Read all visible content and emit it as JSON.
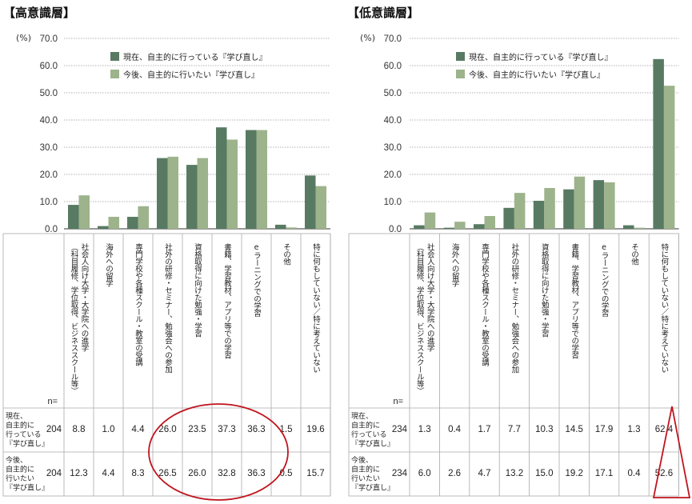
{
  "colors": {
    "series_current": "#587a62",
    "series_future": "#9db38c",
    "annotation": "#c0141e",
    "grid": "#999999"
  },
  "legend": {
    "current": "現在、自主的に行っている『学び直し』",
    "future": "今後、自主的に行いたい『学び直し』"
  },
  "table": {
    "n_label": "n=",
    "row_current": [
      "現在、",
      "自主的に",
      "行っている",
      "『学び直し』"
    ],
    "row_future": [
      "今後、",
      "自主的に",
      "行いたい",
      "『学び直し』"
    ]
  },
  "chart_data": [
    {
      "type": "bar",
      "title": "【高意識層】",
      "ylabel": "(%)",
      "ylim": [
        0,
        70
      ],
      "yticks": [
        "0.0",
        "10.0",
        "20.0",
        "30.0",
        "40.0",
        "50.0",
        "60.0",
        "70.0"
      ],
      "legend_position": "top-left",
      "categories": [
        [
          "社会人向け大学・大学院への進学",
          "（科目履修、学位取得、ビジネススクール等）"
        ],
        [
          "海外への留学"
        ],
        [
          "専門学校や各種スクール・教室の受講"
        ],
        [
          "社外の研修・セミナー、勉強会への参加"
        ],
        [
          "資格取得に向けた勉強・学習"
        ],
        [
          "書籍、学習教材、アプリ等での学習"
        ],
        [
          "eラーニングでの学習"
        ],
        [
          "その他"
        ],
        [
          "特に何もしていない／特に考えていない"
        ]
      ],
      "n": [
        204,
        204
      ],
      "series": [
        {
          "name": "現在、自主的に行っている『学び直し』",
          "values": [
            8.8,
            1.0,
            4.4,
            26.0,
            23.5,
            37.3,
            36.3,
            1.5,
            19.6
          ],
          "labels": [
            "8.8",
            "1.0",
            "4.4",
            "26.0",
            "23.5",
            "37.3",
            "36.3",
            "1.5",
            "19.6"
          ]
        },
        {
          "name": "今後、自主的に行いたい『学び直し』",
          "values": [
            12.3,
            4.4,
            8.3,
            26.5,
            26.0,
            32.8,
            36.3,
            0.5,
            15.7
          ],
          "labels": [
            "12.3",
            "4.4",
            "8.3",
            "26.5",
            "26.0",
            "32.8",
            "36.3",
            "0.5",
            "15.7"
          ]
        }
      ]
    },
    {
      "type": "bar",
      "title": "【低意識層】",
      "ylabel": "(%)",
      "ylim": [
        0,
        70
      ],
      "yticks": [
        "0.0",
        "10.0",
        "20.0",
        "30.0",
        "40.0",
        "50.0",
        "60.0",
        "70.0"
      ],
      "legend_position": "top-left",
      "categories": [
        [
          "社会人向け大学・大学院への進学",
          "（科目履修、学位取得、ビジネススクール等）"
        ],
        [
          "海外への留学"
        ],
        [
          "専門学校や各種スクール・教室の受講"
        ],
        [
          "社外の研修・セミナー、勉強会への参加"
        ],
        [
          "資格取得に向けた勉強・学習"
        ],
        [
          "書籍、学習教材、アプリ等での学習"
        ],
        [
          "eラーニングでの学習"
        ],
        [
          "その他"
        ],
        [
          "特に何もしていない／特に考えていない"
        ]
      ],
      "n": [
        234,
        234
      ],
      "series": [
        {
          "name": "現在、自主的に行っている『学び直し』",
          "values": [
            1.3,
            0.4,
            1.7,
            7.7,
            10.3,
            14.5,
            17.9,
            1.3,
            62.4
          ],
          "labels": [
            "1.3",
            "0.4",
            "1.7",
            "7.7",
            "10.3",
            "14.5",
            "17.9",
            "1.3",
            "62.4"
          ]
        },
        {
          "name": "今後、自主的に行いたい『学び直し』",
          "values": [
            6.0,
            2.6,
            4.7,
            13.2,
            15.0,
            19.2,
            17.1,
            0.4,
            52.6
          ],
          "labels": [
            "6.0",
            "2.6",
            "4.7",
            "13.2",
            "15.0",
            "19.2",
            "17.1",
            "0.4",
            "52.6"
          ]
        }
      ]
    }
  ]
}
